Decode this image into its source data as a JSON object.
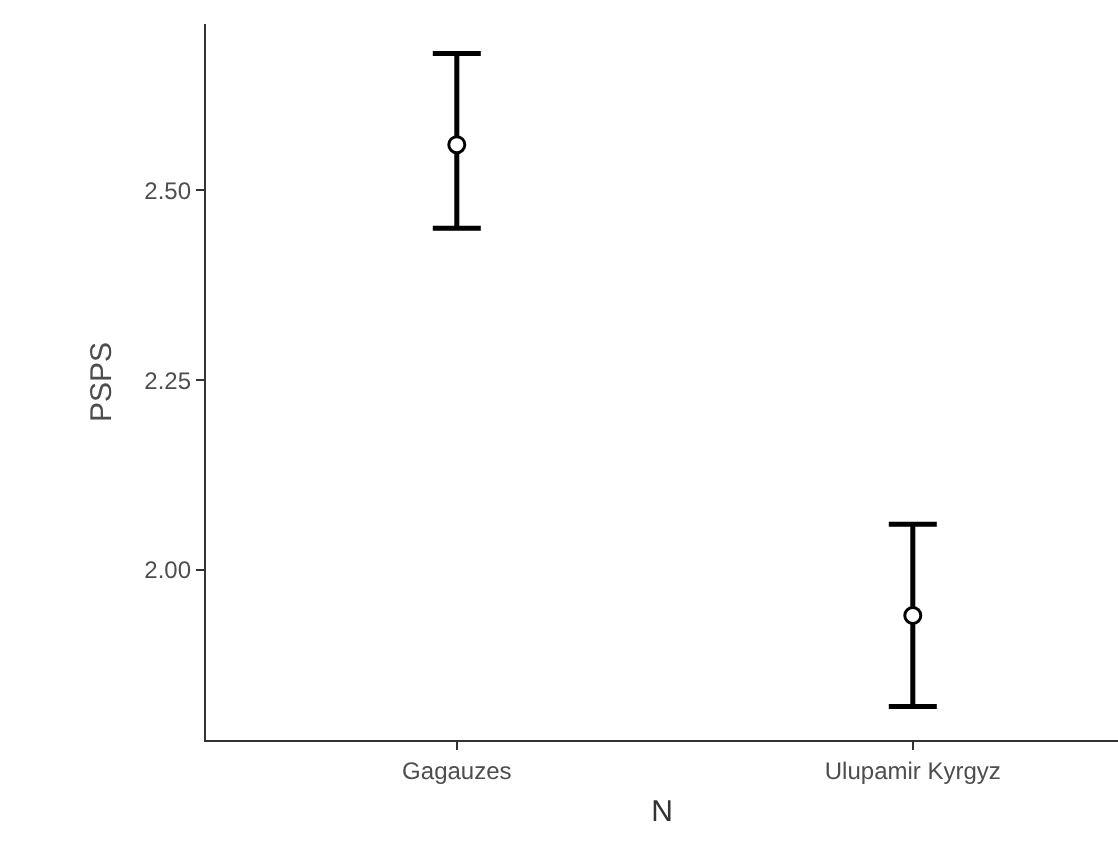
{
  "chart_data": {
    "type": "scatter",
    "xlabel": "N",
    "ylabel": "PSPS",
    "categories": [
      "Gagauzes",
      "Ulupamir Kyrgyz"
    ],
    "values": [
      2.56,
      1.94
    ],
    "errors": [
      [
        2.45,
        2.68
      ],
      [
        1.82,
        2.06
      ]
    ],
    "color": "#000000",
    "marker": "circle",
    "ylim": [
      1.776,
      2.719
    ],
    "yticks": [
      {
        "value": 2,
        "label": "2.00"
      },
      {
        "value": 2.25,
        "label": "2.25"
      },
      {
        "value": 2.5,
        "label": "2.50"
      }
    ],
    "grid": false,
    "legend": false
  }
}
